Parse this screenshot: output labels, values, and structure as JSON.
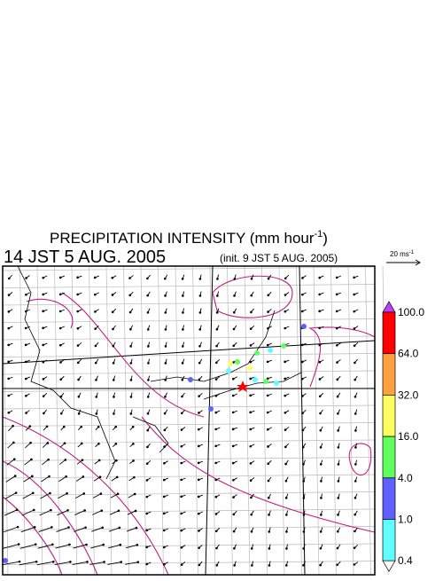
{
  "title": {
    "main": "PRECIPITATION INTENSITY (mm hour",
    "sup": "-1",
    "end": ")"
  },
  "valid_time": "14 JST 5 AUG. 2005",
  "init_time": "(init. 9 JST 5 AUG. 2005)",
  "vector_scale": {
    "main": "20 ms",
    "sup": "-1"
  },
  "colorbar": {
    "top_color": "#c040ff",
    "bottom_color": "#ffffff",
    "bands": [
      {
        "label": "100.0",
        "color": "#ff0000"
      },
      {
        "label": "64.0",
        "color": "#ffa040"
      },
      {
        "label": "32.0",
        "color": "#ffff60"
      },
      {
        "label": "16.0",
        "color": "#60ff60"
      },
      {
        "label": "4.0",
        "color": "#6060ff"
      },
      {
        "label": "1.0",
        "color": "#60ffff"
      },
      {
        "label": "0.4",
        "color": null
      }
    ]
  }
}
